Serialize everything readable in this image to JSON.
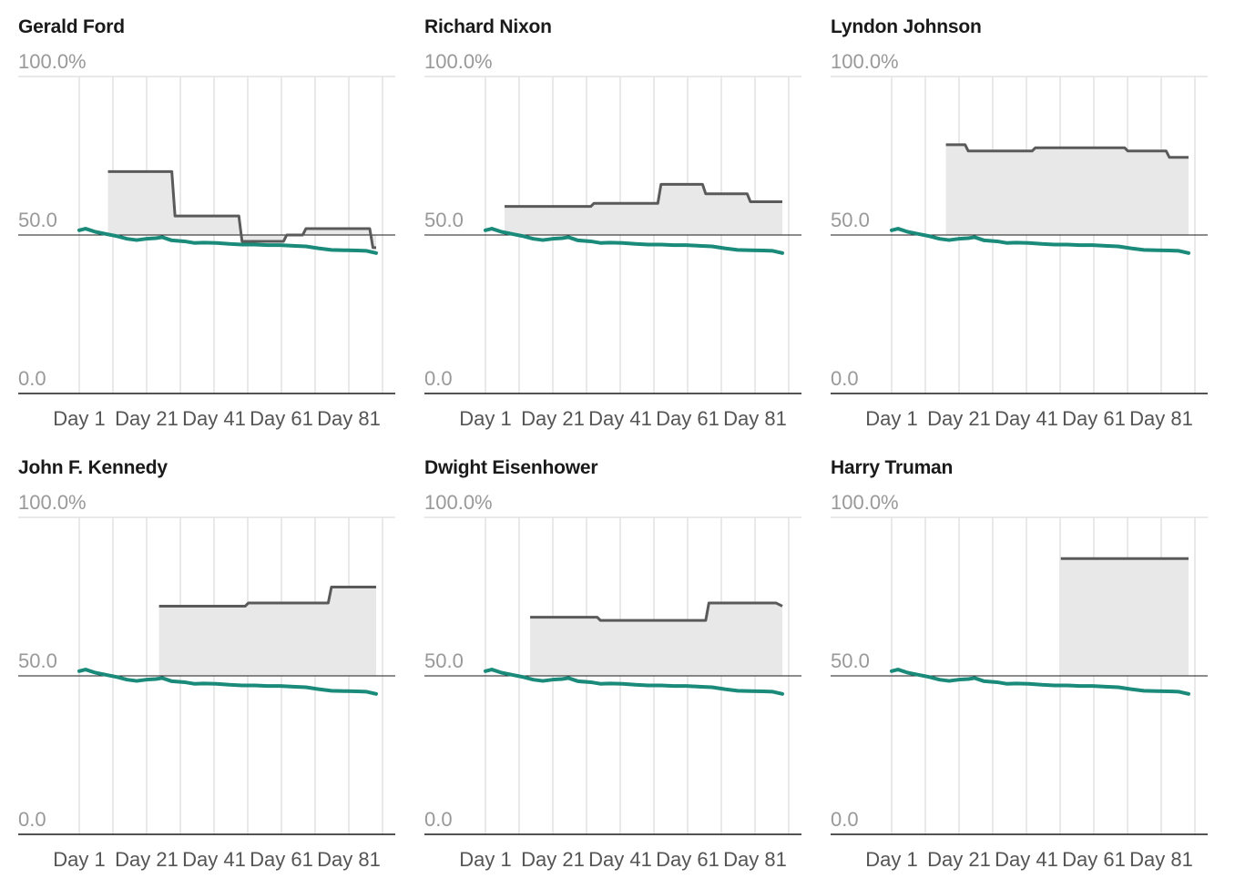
{
  "chart_data": [
    {
      "type": "line",
      "title": "Gerald Ford",
      "y_ticks": [
        "100.0%",
        "50.0",
        "0.0"
      ],
      "x_ticks": [
        "Day 1",
        "Day 21",
        "Day 41",
        "Day 61",
        "Day 81"
      ],
      "ylim": [
        0,
        100
      ],
      "xlim": [
        1,
        100
      ],
      "reference_line": 50,
      "series": [
        {
          "values": [
            [
              10,
              70
            ],
            [
              30,
              70
            ],
            [
              31,
              56
            ],
            [
              51,
              56
            ],
            [
              52,
              48
            ],
            [
              65,
              48
            ],
            [
              66,
              50
            ],
            [
              71,
              50
            ],
            [
              72,
              52
            ],
            [
              92,
              52
            ],
            [
              93,
              46
            ],
            [
              94,
              46
            ]
          ]
        },
        {
          "values": [
            [
              1,
              51.5
            ],
            [
              3,
              52
            ],
            [
              6,
              51
            ],
            [
              10,
              50.2
            ],
            [
              13,
              49.6
            ],
            [
              16,
              48.8
            ],
            [
              19,
              48.4
            ],
            [
              22,
              48.8
            ],
            [
              25,
              49
            ],
            [
              27,
              49.3
            ],
            [
              30,
              48.3
            ],
            [
              34,
              48
            ],
            [
              37,
              47.5
            ],
            [
              40,
              47.6
            ],
            [
              44,
              47.5
            ],
            [
              48,
              47.2
            ],
            [
              52,
              47
            ],
            [
              56,
              47
            ],
            [
              60,
              46.8
            ],
            [
              64,
              46.8
            ],
            [
              68,
              46.6
            ],
            [
              72,
              46.4
            ],
            [
              76,
              45.8
            ],
            [
              80,
              45.3
            ],
            [
              84,
              45.2
            ],
            [
              88,
              45.1
            ],
            [
              91,
              45
            ],
            [
              94,
              44.3
            ]
          ]
        }
      ]
    },
    {
      "type": "line",
      "title": "Richard Nixon",
      "y_ticks": [
        "100.0%",
        "50.0",
        "0.0"
      ],
      "x_ticks": [
        "Day 1",
        "Day 21",
        "Day 41",
        "Day 61",
        "Day 81"
      ],
      "ylim": [
        0,
        100
      ],
      "xlim": [
        1,
        100
      ],
      "reference_line": 50,
      "series": [
        {
          "values": [
            [
              7,
              59
            ],
            [
              34,
              59
            ],
            [
              35,
              60
            ],
            [
              55,
              60
            ],
            [
              56,
              66
            ],
            [
              69,
              66
            ],
            [
              70,
              63
            ],
            [
              83,
              63
            ],
            [
              84,
              60.5
            ],
            [
              94,
              60.5
            ]
          ]
        },
        {
          "values": [
            [
              1,
              51.5
            ],
            [
              3,
              52
            ],
            [
              6,
              51
            ],
            [
              10,
              50.2
            ],
            [
              13,
              49.6
            ],
            [
              16,
              48.8
            ],
            [
              19,
              48.4
            ],
            [
              22,
              48.8
            ],
            [
              25,
              49
            ],
            [
              27,
              49.3
            ],
            [
              30,
              48.3
            ],
            [
              34,
              48
            ],
            [
              37,
              47.5
            ],
            [
              40,
              47.6
            ],
            [
              44,
              47.5
            ],
            [
              48,
              47.2
            ],
            [
              52,
              47
            ],
            [
              56,
              47
            ],
            [
              60,
              46.8
            ],
            [
              64,
              46.8
            ],
            [
              68,
              46.6
            ],
            [
              72,
              46.4
            ],
            [
              76,
              45.8
            ],
            [
              80,
              45.3
            ],
            [
              84,
              45.2
            ],
            [
              88,
              45.1
            ],
            [
              91,
              45
            ],
            [
              94,
              44.3
            ]
          ]
        }
      ]
    },
    {
      "type": "line",
      "title": "Lyndon Johnson",
      "y_ticks": [
        "100.0%",
        "50.0",
        "0.0"
      ],
      "x_ticks": [
        "Day 1",
        "Day 21",
        "Day 41",
        "Day 61",
        "Day 81"
      ],
      "ylim": [
        0,
        100
      ],
      "xlim": [
        1,
        100
      ],
      "reference_line": 50,
      "series": [
        {
          "values": [
            [
              18,
              78.5
            ],
            [
              24,
              78.5
            ],
            [
              25,
              76.5
            ],
            [
              45,
              76.5
            ],
            [
              46,
              77.5
            ],
            [
              74,
              77.5
            ],
            [
              75,
              76.5
            ],
            [
              87,
              76.5
            ],
            [
              88,
              74.5
            ],
            [
              94,
              74.5
            ]
          ]
        },
        {
          "values": [
            [
              1,
              51.5
            ],
            [
              3,
              52
            ],
            [
              6,
              51
            ],
            [
              10,
              50.2
            ],
            [
              13,
              49.6
            ],
            [
              16,
              48.8
            ],
            [
              19,
              48.4
            ],
            [
              22,
              48.8
            ],
            [
              25,
              49
            ],
            [
              27,
              49.3
            ],
            [
              30,
              48.3
            ],
            [
              34,
              48
            ],
            [
              37,
              47.5
            ],
            [
              40,
              47.6
            ],
            [
              44,
              47.5
            ],
            [
              48,
              47.2
            ],
            [
              52,
              47
            ],
            [
              56,
              47
            ],
            [
              60,
              46.8
            ],
            [
              64,
              46.8
            ],
            [
              68,
              46.6
            ],
            [
              72,
              46.4
            ],
            [
              76,
              45.8
            ],
            [
              80,
              45.3
            ],
            [
              84,
              45.2
            ],
            [
              88,
              45.1
            ],
            [
              91,
              45
            ],
            [
              94,
              44.3
            ]
          ]
        }
      ]
    },
    {
      "type": "line",
      "title": "John F. Kennedy",
      "y_ticks": [
        "100.0%",
        "50.0",
        "0.0"
      ],
      "x_ticks": [
        "Day 1",
        "Day 21",
        "Day 41",
        "Day 61",
        "Day 81"
      ],
      "ylim": [
        0,
        100
      ],
      "xlim": [
        1,
        100
      ],
      "reference_line": 50,
      "series": [
        {
          "values": [
            [
              26,
              72
            ],
            [
              53,
              72
            ],
            [
              54,
              73
            ],
            [
              79,
              73
            ],
            [
              80,
              78
            ],
            [
              94,
              78
            ]
          ]
        },
        {
          "values": [
            [
              1,
              51.5
            ],
            [
              3,
              52
            ],
            [
              6,
              51
            ],
            [
              10,
              50.2
            ],
            [
              13,
              49.6
            ],
            [
              16,
              48.8
            ],
            [
              19,
              48.4
            ],
            [
              22,
              48.8
            ],
            [
              25,
              49
            ],
            [
              27,
              49.3
            ],
            [
              30,
              48.3
            ],
            [
              34,
              48
            ],
            [
              37,
              47.5
            ],
            [
              40,
              47.6
            ],
            [
              44,
              47.5
            ],
            [
              48,
              47.2
            ],
            [
              52,
              47
            ],
            [
              56,
              47
            ],
            [
              60,
              46.8
            ],
            [
              64,
              46.8
            ],
            [
              68,
              46.6
            ],
            [
              72,
              46.4
            ],
            [
              76,
              45.8
            ],
            [
              80,
              45.3
            ],
            [
              84,
              45.2
            ],
            [
              88,
              45.1
            ],
            [
              91,
              45
            ],
            [
              94,
              44.3
            ]
          ]
        }
      ]
    },
    {
      "type": "line",
      "title": "Dwight Eisenhower",
      "y_ticks": [
        "100.0%",
        "50.0",
        "0.0"
      ],
      "x_ticks": [
        "Day 1",
        "Day 21",
        "Day 41",
        "Day 61",
        "Day 81"
      ],
      "ylim": [
        0,
        100
      ],
      "xlim": [
        1,
        100
      ],
      "reference_line": 50,
      "series": [
        {
          "values": [
            [
              15,
              68.5
            ],
            [
              36,
              68.5
            ],
            [
              37,
              67.5
            ],
            [
              70,
              67.5
            ],
            [
              71,
              73
            ],
            [
              92,
              73
            ],
            [
              94,
              72
            ]
          ]
        },
        {
          "values": [
            [
              1,
              51.5
            ],
            [
              3,
              52
            ],
            [
              6,
              51
            ],
            [
              10,
              50.2
            ],
            [
              13,
              49.6
            ],
            [
              16,
              48.8
            ],
            [
              19,
              48.4
            ],
            [
              22,
              48.8
            ],
            [
              25,
              49
            ],
            [
              27,
              49.3
            ],
            [
              30,
              48.3
            ],
            [
              34,
              48
            ],
            [
              37,
              47.5
            ],
            [
              40,
              47.6
            ],
            [
              44,
              47.5
            ],
            [
              48,
              47.2
            ],
            [
              52,
              47
            ],
            [
              56,
              47
            ],
            [
              60,
              46.8
            ],
            [
              64,
              46.8
            ],
            [
              68,
              46.6
            ],
            [
              72,
              46.4
            ],
            [
              76,
              45.8
            ],
            [
              80,
              45.3
            ],
            [
              84,
              45.2
            ],
            [
              88,
              45.1
            ],
            [
              91,
              45
            ],
            [
              94,
              44.3
            ]
          ]
        }
      ]
    },
    {
      "type": "line",
      "title": "Harry Truman",
      "y_ticks": [
        "100.0%",
        "50.0",
        "0.0"
      ],
      "x_ticks": [
        "Day 1",
        "Day 21",
        "Day 41",
        "Day 61",
        "Day 81"
      ],
      "ylim": [
        0,
        100
      ],
      "xlim": [
        1,
        100
      ],
      "reference_line": 50,
      "series": [
        {
          "values": [
            [
              54,
              87
            ],
            [
              94,
              87
            ]
          ]
        },
        {
          "values": [
            [
              1,
              51.5
            ],
            [
              3,
              52
            ],
            [
              6,
              51
            ],
            [
              10,
              50.2
            ],
            [
              13,
              49.6
            ],
            [
              16,
              48.8
            ],
            [
              19,
              48.4
            ],
            [
              22,
              48.8
            ],
            [
              25,
              49
            ],
            [
              27,
              49.3
            ],
            [
              30,
              48.3
            ],
            [
              34,
              48
            ],
            [
              37,
              47.5
            ],
            [
              40,
              47.6
            ],
            [
              44,
              47.5
            ],
            [
              48,
              47.2
            ],
            [
              52,
              47
            ],
            [
              56,
              47
            ],
            [
              60,
              46.8
            ],
            [
              64,
              46.8
            ],
            [
              68,
              46.6
            ],
            [
              72,
              46.4
            ],
            [
              76,
              45.8
            ],
            [
              80,
              45.3
            ],
            [
              84,
              45.2
            ],
            [
              88,
              45.1
            ],
            [
              91,
              45
            ],
            [
              94,
              44.3
            ]
          ]
        }
      ]
    }
  ],
  "colors": {
    "upper_line": "#5a5a5a",
    "lower_line": "#1a8a7a",
    "fill": "#e8e8e8",
    "gridline": "#e2e2e2",
    "baseline": "#1a1a1a",
    "y_tick_text": "#999999",
    "x_tick_text": "#555555"
  }
}
